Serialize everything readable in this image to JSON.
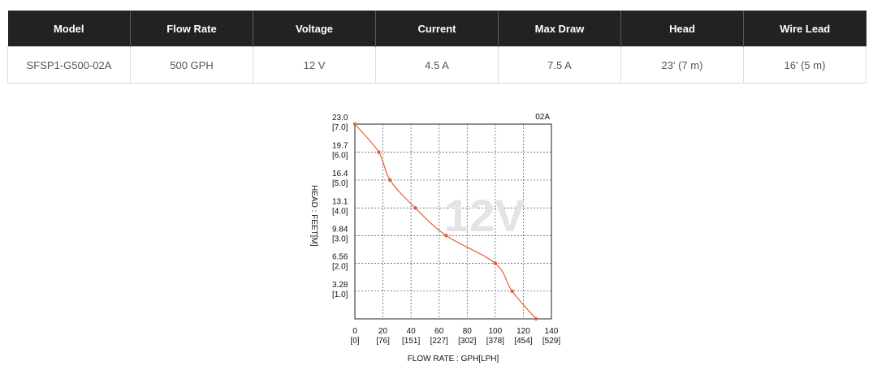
{
  "table": {
    "headers": [
      "Model",
      "Flow Rate",
      "Voltage",
      "Current",
      "Max Draw",
      "Head",
      "Wire Lead"
    ],
    "rows": [
      [
        "SFSP1-G500-02A",
        "500 GPH",
        "12 V",
        "4.5 A",
        "7.5 A",
        "23' (7 m)",
        "16' (5 m)"
      ]
    ]
  },
  "chart_data": {
    "type": "line",
    "corner_label": "02A",
    "watermark": "12V",
    "xlabel": "FLOW RATE : GPH[LPH]",
    "ylabel": "HEAD : FEET[M]",
    "xlim": [
      0,
      140
    ],
    "ylim": [
      0,
      23.0
    ],
    "grid": true,
    "x_ticks": [
      {
        "value": 0,
        "label": "0",
        "sub": "[0]"
      },
      {
        "value": 20,
        "label": "20",
        "sub": "[76]"
      },
      {
        "value": 40,
        "label": "40",
        "sub": "[151]"
      },
      {
        "value": 60,
        "label": "60",
        "sub": "[227]"
      },
      {
        "value": 80,
        "label": "80",
        "sub": "[302]"
      },
      {
        "value": 100,
        "label": "100",
        "sub": "[378]"
      },
      {
        "value": 120,
        "label": "120",
        "sub": "[454]"
      },
      {
        "value": 140,
        "label": "140",
        "sub": "[529]"
      }
    ],
    "y_ticks": [
      {
        "value": 23.0,
        "label": "23.0",
        "sub": "[7.0]"
      },
      {
        "value": 19.7,
        "label": "19.7",
        "sub": "[6.0]"
      },
      {
        "value": 16.4,
        "label": "16.4",
        "sub": "[5.0]"
      },
      {
        "value": 13.1,
        "label": "13.1",
        "sub": "[4.0]"
      },
      {
        "value": 9.84,
        "label": "9.84",
        "sub": "[3.0]"
      },
      {
        "value": 6.56,
        "label": "6.56",
        "sub": "[2.0]"
      },
      {
        "value": 3.28,
        "label": "3.28",
        "sub": "[1.0]"
      }
    ],
    "series": [
      {
        "color": "#e0623a",
        "x": [
          0,
          17,
          25,
          43,
          65,
          100,
          112,
          129
        ],
        "y": [
          23.0,
          19.7,
          16.4,
          13.1,
          9.84,
          6.56,
          3.28,
          0
        ]
      }
    ]
  }
}
